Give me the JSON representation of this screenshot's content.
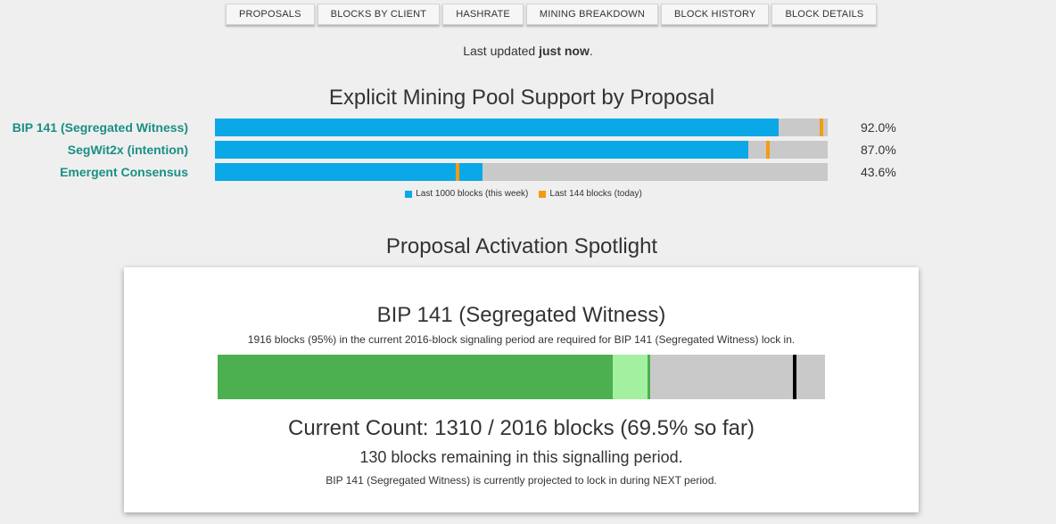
{
  "nav": {
    "items": [
      {
        "label": "PROPOSALS"
      },
      {
        "label": "BLOCKS BY CLIENT"
      },
      {
        "label": "HASHRATE"
      },
      {
        "label": "MINING BREAKDOWN"
      },
      {
        "label": "BLOCK HISTORY"
      },
      {
        "label": "BLOCK DETAILS"
      }
    ]
  },
  "updated": {
    "prefix": "Last updated ",
    "value": "just now",
    "suffix": "."
  },
  "support": {
    "title": "Explicit Mining Pool Support by Proposal",
    "legend": {
      "week_label": "Last 1000 blocks (this week)",
      "today_label": "Last 144 blocks (today)"
    },
    "colors": {
      "week": "#0ba8e8",
      "today": "#f39c12",
      "track": "#c9c9c9",
      "label": "#1a8f84"
    }
  },
  "chart_data": {
    "type": "bar",
    "categories": [
      "BIP 141 (Segregated Witness)",
      "SegWit2x (intention)",
      "Emergent Consensus"
    ],
    "value_labels": [
      "92.0%",
      "87.0%",
      "43.6%"
    ],
    "series": [
      {
        "name": "Last 1000 blocks (this week)",
        "values": [
          92.0,
          87.0,
          43.6
        ]
      },
      {
        "name": "Last 144 blocks (today)",
        "values": [
          99.0,
          90.3,
          39.6
        ]
      }
    ],
    "ylim": [
      0,
      100
    ]
  },
  "spotlight": {
    "title": "Proposal Activation Spotlight",
    "proposal": "BIP 141 (Segregated Witness)",
    "requirement": "1916 blocks (95%) in the current 2016-block signaling period are required for BIP 141 (Segregated Witness) lock in.",
    "count_text": "Current Count: 1310 / 2016 blocks (69.5% so far)",
    "remaining_text": "130 blocks remaining in this signalling period.",
    "projection_text": "BIP 141 (Segregated Witness) is currently projected to lock in during NEXT period.",
    "progress": {
      "current_fraction": 0.65,
      "projected_fraction": 0.71,
      "threshold_fraction": 0.95
    },
    "colors": {
      "current": "#4caf50",
      "projected": "#a3f0a0",
      "threshold": "#000000"
    }
  }
}
